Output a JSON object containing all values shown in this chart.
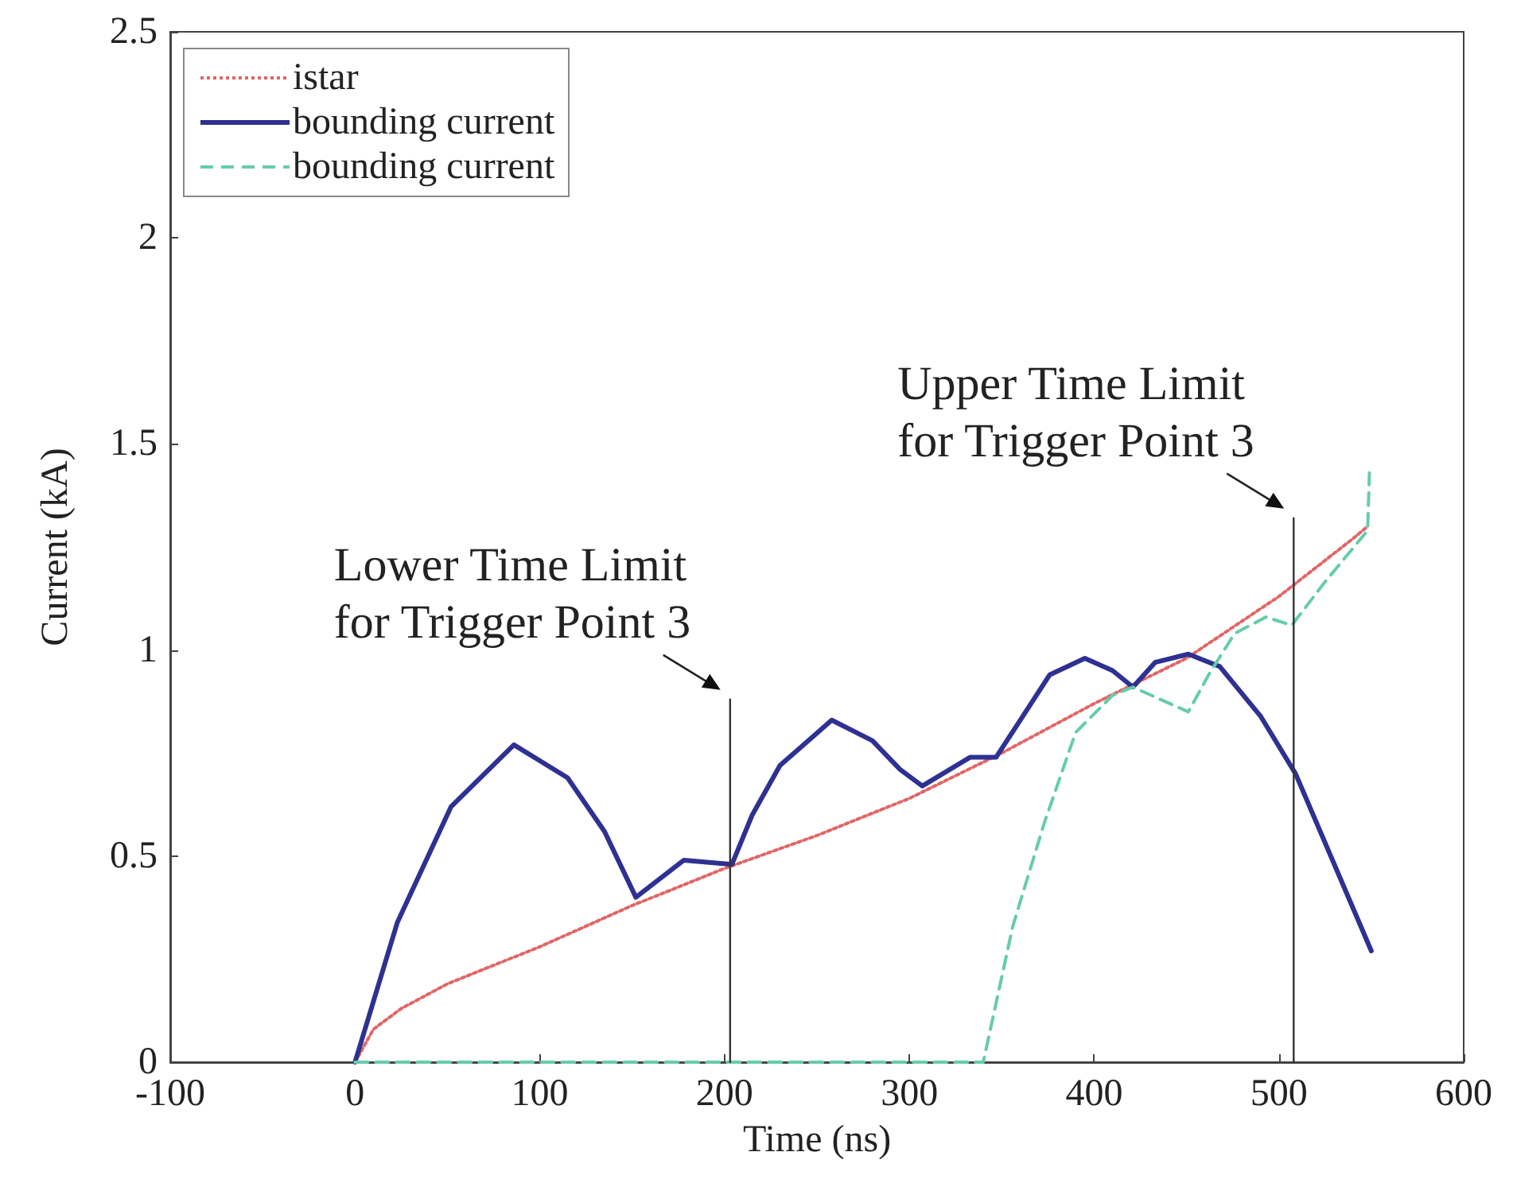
{
  "chart_data": {
    "type": "line",
    "xlabel": "Time (ns)",
    "ylabel": "Current (kA)",
    "xlim": [
      -100,
      600
    ],
    "xticks": [
      -100,
      0,
      100,
      200,
      300,
      400,
      500,
      600
    ],
    "ylim": [
      0,
      2.5
    ],
    "yticks": [
      0,
      0.5,
      1,
      1.5,
      2,
      2.5
    ],
    "legend": "top left",
    "series": [
      {
        "name": "istar",
        "color": "#e06666",
        "line_style": "dotted",
        "x": [
          0,
          10,
          25,
          50,
          100,
          150,
          200,
          250,
          300,
          350,
          400,
          450,
          500,
          540,
          548
        ],
        "values": [
          0,
          0.08,
          0.13,
          0.19,
          0.28,
          0.38,
          0.47,
          0.55,
          0.64,
          0.75,
          0.87,
          0.98,
          1.13,
          1.27,
          1.3
        ]
      },
      {
        "name": "bounding current",
        "color": "#2e3192",
        "line_style": "solid",
        "x": [
          0,
          23,
          52,
          86,
          115,
          135,
          152,
          178,
          204,
          215,
          230,
          258,
          280,
          295,
          307,
          333,
          347,
          376,
          395,
          410,
          421,
          433,
          451,
          468,
          490,
          509,
          550
        ],
        "values": [
          0,
          0.34,
          0.62,
          0.77,
          0.69,
          0.56,
          0.4,
          0.49,
          0.48,
          0.6,
          0.72,
          0.83,
          0.78,
          0.71,
          0.67,
          0.74,
          0.74,
          0.94,
          0.98,
          0.95,
          0.91,
          0.97,
          0.99,
          0.96,
          0.84,
          0.7,
          0.27
        ]
      },
      {
        "name": "bounding current",
        "color": "#66ccaa",
        "line_style": "dashed",
        "x": [
          0,
          340,
          356,
          373,
          390,
          410,
          421,
          451,
          462,
          476,
          493,
          507,
          524,
          548,
          549
        ],
        "values": [
          0,
          0,
          0.33,
          0.58,
          0.8,
          0.89,
          0.91,
          0.85,
          0.94,
          1.04,
          1.08,
          1.06,
          1.16,
          1.29,
          1.43
        ]
      },
      {
        "color": "#333333",
        "line_style": "solid",
        "x": [
          203,
          203
        ],
        "values": [
          0,
          0.88
        ]
      },
      {
        "color": "#333333",
        "line_style": "solid",
        "x": [
          508,
          508
        ],
        "values": [
          0,
          1.32
        ]
      }
    ],
    "annotations": [
      "Lower Time Limit\nfor Trigger Point 3",
      "Upper Time Limit\nfor Trigger Point 3"
    ]
  }
}
